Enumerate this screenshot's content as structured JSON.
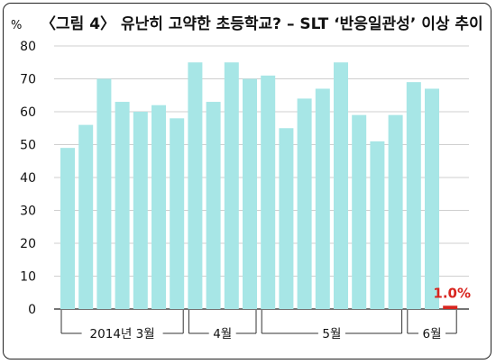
{
  "chart_data": {
    "type": "bar",
    "title": "〈그림 4〉 유난히 고약한 초등학교? – SLT ‘반응일관성’ 이상 추이",
    "ylabel_unit": "%",
    "ylim": [
      0,
      80
    ],
    "yticks": [
      0,
      10,
      20,
      30,
      40,
      50,
      60,
      70,
      80
    ],
    "grid": true,
    "bar_color": "#a7e6e6",
    "highlight_color": "#d8251f",
    "values": [
      49,
      56,
      70,
      63,
      60,
      62,
      58,
      75,
      63,
      75,
      70,
      71,
      55,
      64,
      67,
      75,
      59,
      51,
      59,
      69,
      67,
      1.0
    ],
    "highlight_index": 21,
    "highlight_label": "1.0%",
    "groups": [
      {
        "label": "2014년 3월",
        "start": 0,
        "end": 6
      },
      {
        "label": "4월",
        "start": 7,
        "end": 10
      },
      {
        "label": "5월",
        "start": 11,
        "end": 18
      },
      {
        "label": "6월",
        "start": 19,
        "end": 21
      }
    ]
  }
}
